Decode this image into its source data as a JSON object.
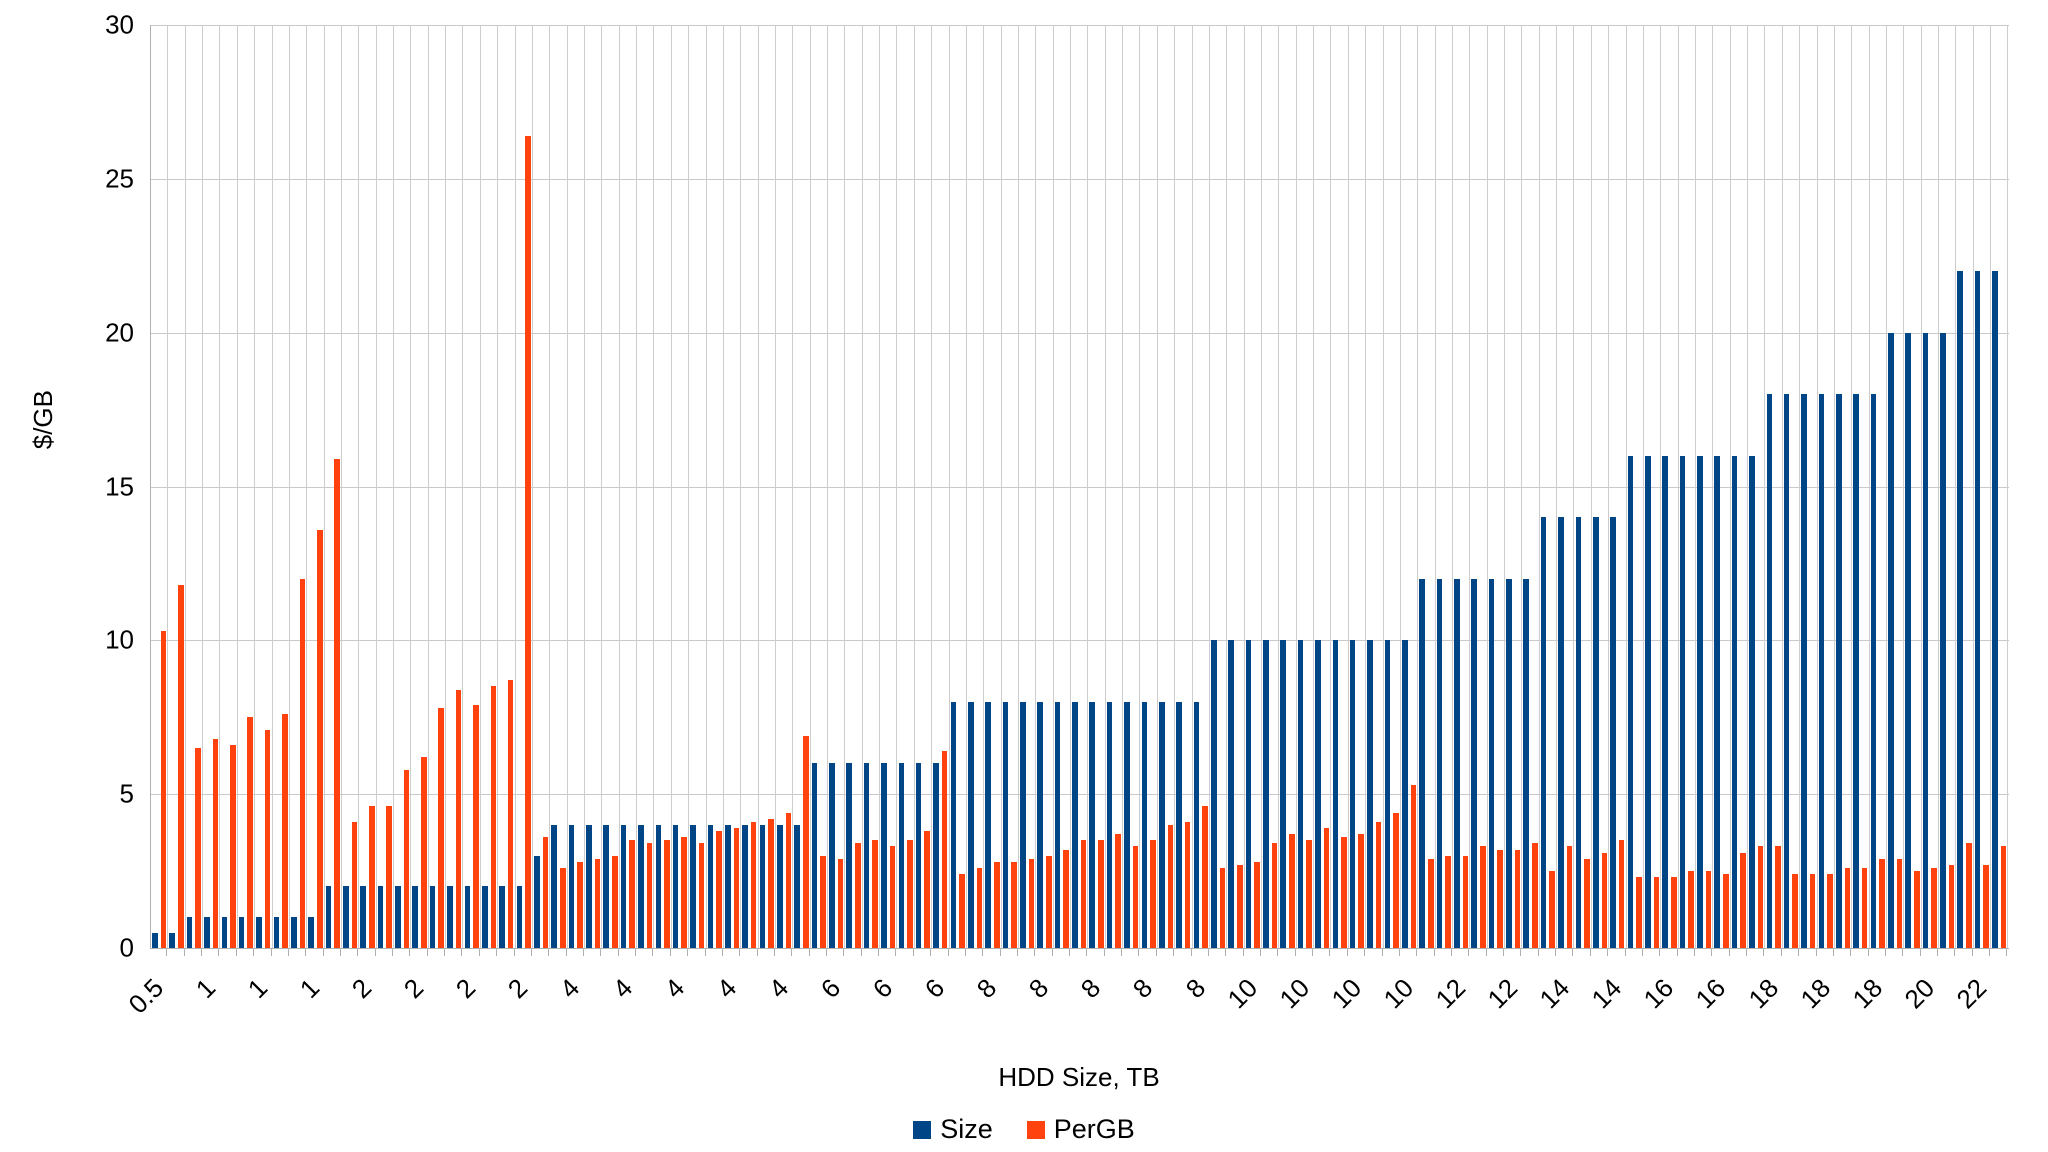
{
  "chart_data": {
    "type": "bar",
    "title": "",
    "xlabel": "HDD Size, TB",
    "ylabel": "$/GB",
    "ylim": [
      0,
      30
    ],
    "yticks": [
      "0",
      "5",
      "10",
      "15",
      "20",
      "25",
      "30"
    ],
    "grid": "on",
    "legend_position": "bottom",
    "label_every": 3,
    "categories": [
      "0.5",
      "0.5",
      "1",
      "1",
      "1",
      "1",
      "1",
      "1",
      "1",
      "1",
      "2",
      "2",
      "2",
      "2",
      "2",
      "2",
      "2",
      "2",
      "2",
      "2",
      "2",
      "2",
      "3",
      "4",
      "4",
      "4",
      "4",
      "4",
      "4",
      "4",
      "4",
      "4",
      "4",
      "4",
      "4",
      "4",
      "4",
      "4",
      "6",
      "6",
      "6",
      "6",
      "6",
      "6",
      "6",
      "6",
      "8",
      "8",
      "8",
      "8",
      "8",
      "8",
      "8",
      "8",
      "8",
      "8",
      "8",
      "8",
      "8",
      "8",
      "8",
      "10",
      "10",
      "10",
      "10",
      "10",
      "10",
      "10",
      "10",
      "10",
      "10",
      "10",
      "10",
      "12",
      "12",
      "12",
      "12",
      "12",
      "12",
      "12",
      "14",
      "14",
      "14",
      "14",
      "14",
      "16",
      "16",
      "16",
      "16",
      "16",
      "16",
      "16",
      "16",
      "18",
      "18",
      "18",
      "18",
      "18",
      "18",
      "18",
      "20",
      "20",
      "20",
      "20",
      "22",
      "22",
      "22"
    ],
    "series": [
      {
        "name": "Size",
        "color": "#004586",
        "values": [
          0.5,
          0.5,
          1,
          1,
          1,
          1,
          1,
          1,
          1,
          1,
          2,
          2,
          2,
          2,
          2,
          2,
          2,
          2,
          2,
          2,
          2,
          2,
          3,
          4,
          4,
          4,
          4,
          4,
          4,
          4,
          4,
          4,
          4,
          4,
          4,
          4,
          4,
          4,
          6,
          6,
          6,
          6,
          6,
          6,
          6,
          6,
          8,
          8,
          8,
          8,
          8,
          8,
          8,
          8,
          8,
          8,
          8,
          8,
          8,
          8,
          8,
          10,
          10,
          10,
          10,
          10,
          10,
          10,
          10,
          10,
          10,
          10,
          10,
          12,
          12,
          12,
          12,
          12,
          12,
          12,
          14,
          14,
          14,
          14,
          14,
          16,
          16,
          16,
          16,
          16,
          16,
          16,
          16,
          18,
          18,
          18,
          18,
          18,
          18,
          18,
          20,
          20,
          20,
          20,
          22,
          22,
          22
        ]
      },
      {
        "name": "PerGB",
        "color": "#FF420E",
        "values": [
          10.3,
          11.8,
          6.5,
          6.8,
          6.6,
          7.5,
          7.1,
          7.6,
          12.0,
          13.6,
          15.9,
          4.1,
          4.6,
          4.6,
          5.8,
          6.2,
          7.8,
          8.4,
          7.9,
          8.5,
          8.7,
          26.4,
          3.6,
          2.6,
          2.8,
          2.9,
          3.0,
          3.5,
          3.4,
          3.5,
          3.6,
          3.4,
          3.8,
          3.9,
          4.1,
          4.2,
          4.4,
          6.9,
          3.0,
          2.9,
          3.4,
          3.5,
          3.3,
          3.5,
          3.8,
          6.4,
          2.4,
          2.6,
          2.8,
          2.8,
          2.9,
          3.0,
          3.2,
          3.5,
          3.5,
          3.7,
          3.3,
          3.5,
          4.0,
          4.1,
          4.6,
          2.6,
          2.7,
          2.8,
          3.4,
          3.7,
          3.5,
          3.9,
          3.6,
          3.7,
          4.1,
          4.4,
          5.3,
          2.9,
          3.0,
          3.0,
          3.3,
          3.2,
          3.2,
          3.4,
          2.5,
          3.3,
          2.9,
          3.1,
          3.5,
          2.3,
          2.3,
          2.3,
          2.5,
          2.5,
          2.4,
          3.1,
          3.3,
          3.3,
          2.4,
          2.4,
          2.4,
          2.6,
          2.6,
          2.9,
          2.9,
          2.5,
          2.6,
          2.7,
          3.4,
          2.7,
          3.3
        ]
      }
    ]
  },
  "legend": {
    "size_label": "Size",
    "pergb_label": "PerGB"
  },
  "colors": {
    "size": "#004586",
    "pergb": "#FF420E",
    "gridline": "#c9c9c9",
    "axis": "#b0b0b0"
  }
}
